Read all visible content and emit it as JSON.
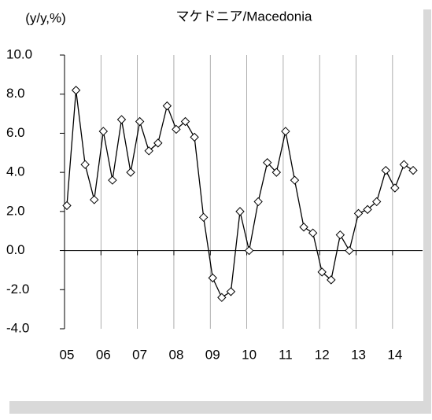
{
  "chart_data": {
    "type": "line",
    "title": "マケドニア/Macedonia",
    "y_axis_label": "(y/y,%)",
    "categories": [
      "05",
      null,
      null,
      null,
      "06",
      null,
      null,
      null,
      "07",
      null,
      null,
      null,
      "08",
      null,
      null,
      null,
      "09",
      null,
      null,
      null,
      "10",
      null,
      null,
      null,
      "11",
      null,
      null,
      null,
      "12",
      null,
      null,
      null,
      "13",
      null,
      null,
      null,
      "14",
      null,
      null
    ],
    "series": [
      {
        "name": "Macedonia",
        "color": "#000000",
        "values": [
          2.3,
          8.2,
          4.4,
          2.6,
          6.1,
          3.6,
          6.7,
          4.0,
          6.6,
          5.1,
          5.5,
          7.4,
          6.2,
          6.6,
          5.8,
          1.7,
          -1.4,
          -2.4,
          -2.1,
          2.0,
          0.0,
          2.5,
          4.5,
          4.0,
          6.1,
          3.6,
          1.2,
          0.9,
          -1.1,
          -1.5,
          0.8,
          0.0,
          1.9,
          2.1,
          2.5,
          4.1,
          3.2,
          4.4,
          4.1
        ]
      }
    ],
    "ylim": [
      -4,
      10
    ],
    "yticks": [
      {
        "value": -4,
        "label": "-4.0"
      },
      {
        "value": -2,
        "label": "-2.0"
      },
      {
        "value": 0,
        "label": "0.0"
      },
      {
        "value": 2,
        "label": "2.0"
      },
      {
        "value": 4,
        "label": "4.0"
      },
      {
        "value": 6,
        "label": "6.0"
      },
      {
        "value": 8,
        "label": "8.0"
      },
      {
        "value": 10,
        "label": "10.0"
      }
    ],
    "grid": true
  }
}
